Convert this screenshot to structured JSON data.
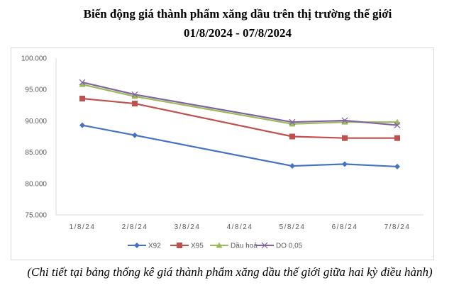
{
  "header": {
    "title": "Biến động giá thành phẩm xăng dầu trên thị trường thế giới",
    "subtitle": "01/8/2024 - 07/8/2024"
  },
  "footer": {
    "note": "(Chi tiết tại bảng thống kê giá thành phẩm xăng dầu thế giới giữa hai kỳ điều hành)"
  },
  "chart_data": {
    "type": "line",
    "title": "Biến động giá thành phẩm xăng dầu trên thị trường thế giới",
    "subtitle": "01/8/2024 - 07/8/2024",
    "xlabel": "",
    "ylabel": "",
    "categories": [
      "1/8/24",
      "2/8/24",
      "3/8/24",
      "4/8/24",
      "5/8/24",
      "6/8/24",
      "7/8/24"
    ],
    "y_ticks": [
      "75.000",
      "80.000",
      "85.000",
      "90.000",
      "95.000",
      "100.000"
    ],
    "ylim": [
      75000,
      100000
    ],
    "grid": false,
    "legend_position": "bottom",
    "series": [
      {
        "name": "X92",
        "color": "#4472C4",
        "marker": "diamond",
        "values": [
          89300,
          87700,
          null,
          null,
          82800,
          83100,
          82700
        ]
      },
      {
        "name": "X95",
        "color": "#C0504D",
        "marker": "square",
        "values": [
          93550,
          92750,
          null,
          null,
          87500,
          87250,
          87250
        ]
      },
      {
        "name": "Dầu hoả",
        "color": "#9BBB59",
        "marker": "triangle",
        "values": [
          95800,
          93900,
          null,
          null,
          89500,
          89800,
          89800
        ]
      },
      {
        "name": "DO 0,05",
        "color": "#8064A2",
        "marker": "x",
        "values": [
          96150,
          94200,
          null,
          null,
          89800,
          90050,
          89300
        ]
      }
    ]
  }
}
